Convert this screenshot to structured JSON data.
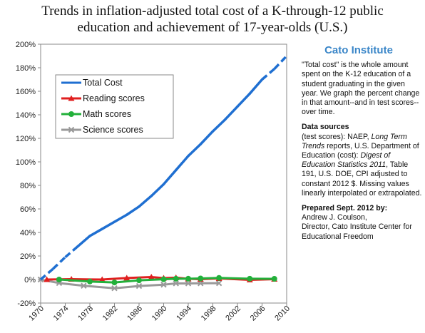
{
  "title_lines": [
    "Trends in inflation-adjusted total cost of a K-through-12 public",
    "education and achievement of 17-year-olds  (U.S.)"
  ],
  "chart_data": {
    "type": "line",
    "title": "Trends in inflation-adjusted total cost of a K-through-12 public education and achievement of 17-year-olds  (U.S.)",
    "xlabel": "",
    "ylabel": "",
    "xlim": [
      1970,
      2010
    ],
    "ylim": [
      -20,
      200
    ],
    "x_ticks": [
      "1970",
      "1974",
      "1978",
      "1982",
      "1986",
      "1990",
      "1994",
      "1998",
      "2002",
      "2006",
      "2010"
    ],
    "y_ticks": [
      "-20%",
      "0%",
      "20%",
      "40%",
      "60%",
      "80%",
      "100%",
      "120%",
      "140%",
      "160%",
      "180%",
      "200%"
    ],
    "legend_position": "top-left",
    "grid": false,
    "series": [
      {
        "name": "Total Cost",
        "color": "#1f6fd1",
        "marker": "none",
        "x": [
          1970,
          1972,
          1974,
          1976,
          1978,
          1980,
          1982,
          1984,
          1986,
          1988,
          1990,
          1992,
          1994,
          1996,
          1998,
          2000,
          2002,
          2004,
          2006,
          2008,
          2010
        ],
        "y": [
          0,
          9,
          19,
          28,
          37,
          43,
          49,
          55,
          62,
          71,
          81,
          93,
          105,
          115,
          126,
          136,
          147,
          158,
          170,
          179,
          190
        ],
        "dashed_segments": [
          [
            1970,
            1976
          ],
          [
            2006,
            2010
          ]
        ]
      },
      {
        "name": "Reading scores",
        "color": "#e01f1f",
        "marker": "triangle",
        "x": [
          1971,
          1975,
          1980,
          1984,
          1988,
          1990,
          1992,
          1994,
          1996,
          1999,
          2004,
          2008
        ],
        "y": [
          0,
          0.3,
          0,
          1.3,
          2.1,
          1.2,
          1.6,
          0.6,
          0.3,
          0.9,
          -0.3,
          0.3
        ],
        "marker_x": [
          1971,
          1975,
          1980,
          1984,
          1988,
          1990,
          1992,
          1994,
          1996,
          1999,
          2004,
          2008
        ]
      },
      {
        "name": "Math scores",
        "color": "#22b03a",
        "marker": "circle",
        "x": [
          1973,
          1978,
          1982,
          1986,
          1990,
          1992,
          1994,
          1996,
          1999,
          2004,
          2008
        ],
        "y": [
          0,
          -1.7,
          -2.5,
          -0.7,
          0.2,
          0.7,
          0.7,
          0.9,
          1.4,
          0.7,
          0.6
        ],
        "marker_x": [
          1973,
          1978,
          1982,
          1986,
          1990,
          1992,
          1994,
          1996,
          1999,
          2004,
          2008
        ]
      },
      {
        "name": "Science scores",
        "color": "#999999",
        "marker": "cross",
        "x": [
          1970,
          1973,
          1977,
          1982,
          1986,
          1990,
          1992,
          1994,
          1996,
          1999
        ],
        "y": [
          0,
          -3,
          -5.3,
          -7.4,
          -5.5,
          -4.4,
          -3.3,
          -3.3,
          -3.2,
          -3.1
        ],
        "marker_x": [
          1970,
          1973,
          1977,
          1982,
          1986,
          1990,
          1992,
          1994,
          1996,
          1999
        ]
      }
    ]
  },
  "sidebar": {
    "brand": "Cato Institute",
    "description": "\"Total cost\" is the whole amount spent on the K-12 education of a student graduating in the given year. We graph the percent change in that amount--and in test scores--over time.",
    "sources_heading": "Data sources",
    "sources_1": "(test scores): NAEP, ",
    "sources_ital_1": "Long Term Trends",
    "sources_2": " reports, U.S. Department of Education (cost): ",
    "sources_ital_2": "Digest of Education Statistics 2011",
    "sources_3": ", Table 191, U.S. DOE, CPI adjusted to constant 2012 $.  Missing values linearly interpolated or extrapolated.",
    "prepared_heading": "Prepared Sept. 2012 by:",
    "prepared_1": "Andrew J. Coulson,",
    "prepared_2": "Director, Cato Institute Center for Educational Freedom"
  },
  "colors": {
    "total_cost": "#1f6fd1",
    "reading": "#e01f1f",
    "math": "#22b03a",
    "science": "#999999",
    "brand": "#3a86c8"
  }
}
